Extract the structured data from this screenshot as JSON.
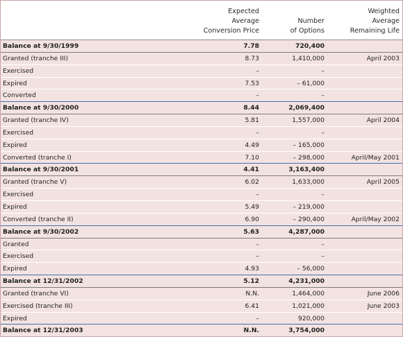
{
  "header": {
    "col_price": [
      "Expected",
      "Average",
      "Conversion Price"
    ],
    "col_options": [
      "Number",
      "of Options"
    ],
    "col_life": [
      "Weighted",
      "Average",
      "Remaining Life"
    ]
  },
  "rows": [
    {
      "label": "Balance at 9/30/1999",
      "price": "7.78",
      "options": "720,400",
      "life": "",
      "type": "balance"
    },
    {
      "label": "Granted (tranche III)",
      "price": "8.73",
      "options": "1,410,000",
      "life": "April 2003",
      "type": "normal"
    },
    {
      "label": "Exercised",
      "price": "–",
      "options": "–",
      "life": "",
      "type": "normal"
    },
    {
      "label": "Expired",
      "price": "7.53",
      "options": "– 61,000",
      "life": "",
      "type": "normal"
    },
    {
      "label": "Converted",
      "price": "–",
      "options": "–",
      "life": "",
      "type": "normal"
    },
    {
      "label": "Balance at 9/30/2000",
      "price": "8.44",
      "options": "2,069,400",
      "life": "",
      "type": "balance"
    },
    {
      "label": "Granted (tranche IV)",
      "price": "5.81",
      "options": "1,557,000",
      "life": "April 2004",
      "type": "normal"
    },
    {
      "label": "Exercised",
      "price": "–",
      "options": "–",
      "life": "",
      "type": "normal"
    },
    {
      "label": "Expired",
      "price": "4.49",
      "options": "– 165,000",
      "life": "",
      "type": "normal"
    },
    {
      "label": "Converted (tranche I)",
      "price": "7.10",
      "options": "– 298,000",
      "life": "April/May 2001",
      "type": "normal"
    },
    {
      "label": "Balance at 9/30/2001",
      "price": "4.41",
      "options": "3,163,400",
      "life": "",
      "type": "balance"
    },
    {
      "label": "Granted (tranche V)",
      "price": "6.02",
      "options": "1,633,000",
      "life": "April 2005",
      "type": "normal"
    },
    {
      "label": "Exercised",
      "price": "–",
      "options": "–",
      "life": "",
      "type": "normal"
    },
    {
      "label": "Expired",
      "price": "5.49",
      "options": "– 219,000",
      "life": "",
      "type": "normal"
    },
    {
      "label": "Converted (tranche II)",
      "price": "6.90",
      "options": "– 290,400",
      "life": "April/May 2002",
      "type": "normal"
    },
    {
      "label": "Balance at 9/30/2002",
      "price": "5.63",
      "options": "4,287,000",
      "life": "",
      "type": "balance"
    },
    {
      "label": "Granted",
      "price": "–",
      "options": "–",
      "life": "",
      "type": "normal"
    },
    {
      "label": "Exercised",
      "price": "–",
      "options": "–",
      "life": "",
      "type": "normal"
    },
    {
      "label": "Expired",
      "price": "4.93",
      "options": "– 56,000",
      "life": "",
      "type": "normal"
    },
    {
      "label": "Balance at 12/31/2002",
      "price": "5.12",
      "options": "4,231,000",
      "life": "",
      "type": "balance"
    },
    {
      "label": "Granted (tranche VI)",
      "price": "N.N.",
      "options": "1,464,000",
      "life": "June 2006",
      "type": "normal"
    },
    {
      "label": "Exercised (tranche III)",
      "price": "6.41",
      "options": "1,021,000",
      "life": "June 2003",
      "type": "normal"
    },
    {
      "label": "Expired",
      "price": "–",
      "options": "920,000",
      "life": "",
      "type": "normal"
    },
    {
      "label": "Balance at 12/31/2003",
      "price": "N.N.",
      "options": "3,754,000",
      "life": "",
      "type": "balance"
    }
  ]
}
